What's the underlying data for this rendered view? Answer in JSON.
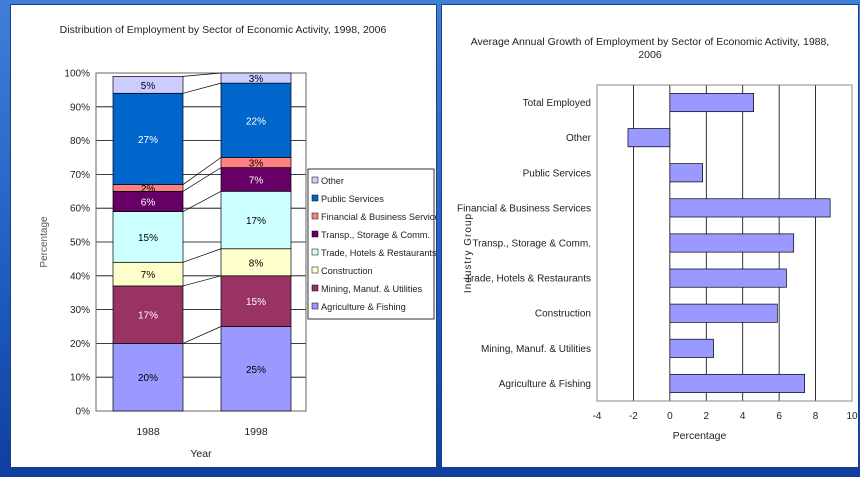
{
  "chart_data": [
    {
      "type": "bar",
      "stacked": true,
      "title": "Distribution of Employment by Sector of Economic Activity, 1998, 2006",
      "xlabel": "Year",
      "ylabel": "Percentage",
      "ylim": [
        0,
        100
      ],
      "y_ticks": [
        "0%",
        "10%",
        "20%",
        "30%",
        "40%",
        "50%",
        "60%",
        "70%",
        "80%",
        "90%",
        "100%"
      ],
      "categories": [
        "1988",
        "1998"
      ],
      "legend_position": "right",
      "grid": true,
      "series": [
        {
          "name": "Agriculture & Fishing",
          "color": "#9999ff",
          "values": [
            20,
            25
          ],
          "labels": [
            "20%",
            "25%"
          ]
        },
        {
          "name": "Mining, Manuf. & Utilities",
          "color": "#993366",
          "values": [
            17,
            15
          ],
          "labels": [
            "17%",
            "15%"
          ]
        },
        {
          "name": "Construction",
          "color": "#ffffcc",
          "values": [
            7,
            8
          ],
          "labels": [
            "7%",
            "8%"
          ]
        },
        {
          "name": "Trade, Hotels & Restaurants",
          "color": "#ccffff",
          "values": [
            15,
            17
          ],
          "labels": [
            "15%",
            "17%"
          ]
        },
        {
          "name": "Transp., Storage & Comm.",
          "color": "#660066",
          "values": [
            6,
            7
          ],
          "labels": [
            "6%",
            "7%"
          ]
        },
        {
          "name": "Financial & Business Services",
          "color": "#ff8080",
          "values": [
            2,
            3
          ],
          "labels": [
            "2%",
            "3%"
          ]
        },
        {
          "name": "Public Services",
          "color": "#0066cc",
          "values": [
            27,
            22
          ],
          "labels": [
            "27%",
            "22%"
          ]
        },
        {
          "name": "Other",
          "color": "#ccccff",
          "values": [
            5,
            3
          ],
          "labels": [
            "5%",
            "3%"
          ]
        }
      ]
    },
    {
      "type": "bar",
      "orientation": "horizontal",
      "title_lines": [
        "Average Annual Growth of Employment by Sector of Economic Activity, 1988,",
        "2006"
      ],
      "xlabel": "Percentage",
      "ylabel": "Industry Group",
      "xlim": [
        -4,
        10
      ],
      "x_ticks": [
        -4,
        -2,
        0,
        2,
        4,
        6,
        8,
        10
      ],
      "grid": true,
      "bar_color": "#9999ff",
      "categories": [
        "Total Employed",
        "Other",
        "Public Services",
        "Financial & Business Services",
        "Transp., Storage & Comm.",
        "Trade, Hotels & Restaurants",
        "Construction",
        "Mining, Manuf. & Utilities",
        "Agriculture & Fishing"
      ],
      "values": [
        4.6,
        -2.3,
        1.8,
        8.8,
        6.8,
        6.4,
        5.9,
        2.4,
        7.4
      ]
    }
  ]
}
